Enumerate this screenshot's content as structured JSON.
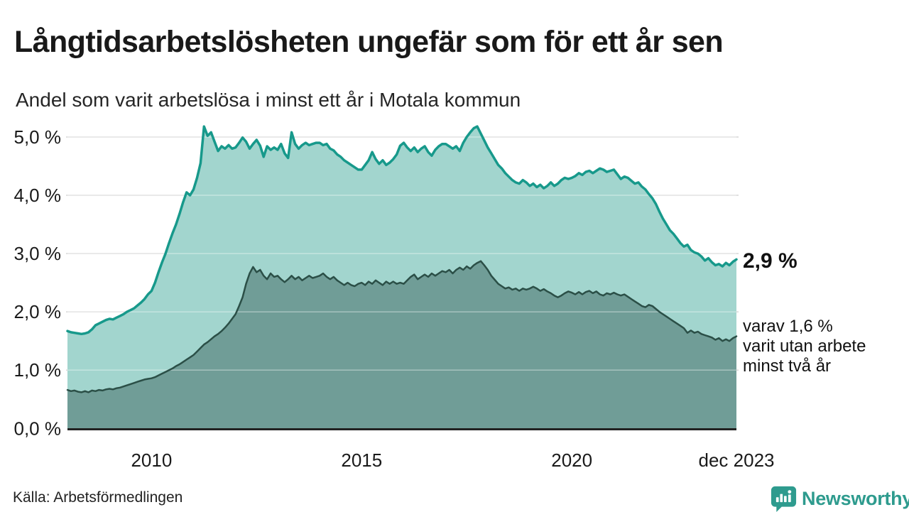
{
  "header": {
    "title": "Långtidsarbetslösheten ungefär som för ett år sen",
    "subtitle": "Andel som varit arbetslösa i minst ett år i Motala kommun"
  },
  "annotations": {
    "latest_total": "2,9 %",
    "secondary_line1": "varav 1,6 %",
    "secondary_line2": "varit utan arbete",
    "secondary_line3": "minst två år"
  },
  "footer": {
    "source": "Källa: Arbetsförmedlingen",
    "brand": "Newsworthy"
  },
  "colors": {
    "total_line": "#17998b",
    "total_fill": "#a2d5ce",
    "two_year_line": "#2b4f47",
    "two_year_fill": "#709d97",
    "gridline": "#d9d9d9",
    "axis_line": "#222222",
    "text": "#1a1a1a",
    "brand_teal": "#2E9B8E"
  },
  "chart_data": {
    "type": "area",
    "title": "Långtidsarbetslösheten ungefär som för ett år sen",
    "subtitle": "Andel som varit arbetslösa i minst ett år i Motala kommun",
    "unit": "%",
    "x_range": {
      "start_year": 2008,
      "end_label": "dec 2023",
      "resolution": "monthly"
    },
    "ylim": [
      0,
      5.3
    ],
    "grid": true,
    "legend": "none (direct labels at line ends)",
    "y_ticks": [
      {
        "label": "0,0 %",
        "value": 0
      },
      {
        "label": "1,0 %",
        "value": 1
      },
      {
        "label": "2,0 %",
        "value": 2
      },
      {
        "label": "3,0 %",
        "value": 3
      },
      {
        "label": "4,0 %",
        "value": 4
      },
      {
        "label": "5,0 %",
        "value": 5
      }
    ],
    "x_ticks": [
      {
        "label": "2010",
        "month_index": 24
      },
      {
        "label": "2015",
        "month_index": 84
      },
      {
        "label": "2020",
        "month_index": 144
      },
      {
        "label": "dec 2023",
        "month_index": 191
      }
    ],
    "series": [
      {
        "name": "Andel arbetslösa minst ett år",
        "end_label": "2,9 %",
        "line_color": "#17998b",
        "fill_color": "#a2d5ce",
        "line_width": 3.5,
        "values": [
          1.67,
          1.65,
          1.64,
          1.63,
          1.62,
          1.63,
          1.65,
          1.7,
          1.77,
          1.8,
          1.83,
          1.86,
          1.88,
          1.87,
          1.9,
          1.93,
          1.96,
          2.0,
          2.03,
          2.06,
          2.11,
          2.16,
          2.22,
          2.3,
          2.36,
          2.5,
          2.68,
          2.85,
          3.0,
          3.18,
          3.35,
          3.5,
          3.68,
          3.88,
          4.05,
          4.0,
          4.1,
          4.3,
          4.55,
          5.18,
          5.02,
          5.08,
          4.92,
          4.76,
          4.84,
          4.8,
          4.86,
          4.8,
          4.82,
          4.9,
          4.99,
          4.92,
          4.8,
          4.88,
          4.95,
          4.85,
          4.66,
          4.84,
          4.78,
          4.82,
          4.78,
          4.88,
          4.72,
          4.64,
          5.08,
          4.88,
          4.8,
          4.86,
          4.9,
          4.86,
          4.88,
          4.9,
          4.9,
          4.86,
          4.88,
          4.8,
          4.77,
          4.7,
          4.66,
          4.6,
          4.56,
          4.52,
          4.48,
          4.44,
          4.44,
          4.52,
          4.6,
          4.74,
          4.62,
          4.54,
          4.6,
          4.52,
          4.56,
          4.62,
          4.7,
          4.85,
          4.9,
          4.82,
          4.76,
          4.82,
          4.74,
          4.8,
          4.84,
          4.74,
          4.68,
          4.78,
          4.84,
          4.88,
          4.88,
          4.84,
          4.8,
          4.84,
          4.76,
          4.9,
          5.0,
          5.08,
          5.15,
          5.18,
          5.06,
          4.94,
          4.82,
          4.72,
          4.62,
          4.52,
          4.46,
          4.38,
          4.32,
          4.26,
          4.22,
          4.2,
          4.26,
          4.22,
          4.16,
          4.2,
          4.14,
          4.18,
          4.12,
          4.16,
          4.22,
          4.16,
          4.2,
          4.26,
          4.3,
          4.28,
          4.3,
          4.33,
          4.38,
          4.35,
          4.4,
          4.42,
          4.38,
          4.42,
          4.46,
          4.44,
          4.4,
          4.42,
          4.44,
          4.36,
          4.28,
          4.32,
          4.3,
          4.25,
          4.2,
          4.22,
          4.15,
          4.1,
          4.02,
          3.95,
          3.85,
          3.72,
          3.6,
          3.5,
          3.4,
          3.34,
          3.26,
          3.18,
          3.12,
          3.15,
          3.06,
          3.02,
          3.0,
          2.95,
          2.88,
          2.92,
          2.85,
          2.8,
          2.82,
          2.78,
          2.84,
          2.8,
          2.86,
          2.9
        ]
      },
      {
        "name": "varav arbetslösa minst två år",
        "end_label": "varav 1,6 % varit utan arbete minst två år",
        "line_color": "#2b4f47",
        "fill_color": "#709d97",
        "line_width": 2.5,
        "values": [
          0.66,
          0.64,
          0.65,
          0.63,
          0.62,
          0.64,
          0.62,
          0.65,
          0.64,
          0.66,
          0.65,
          0.67,
          0.68,
          0.67,
          0.69,
          0.7,
          0.72,
          0.74,
          0.76,
          0.78,
          0.8,
          0.82,
          0.84,
          0.85,
          0.86,
          0.88,
          0.91,
          0.94,
          0.97,
          1.0,
          1.03,
          1.07,
          1.1,
          1.14,
          1.18,
          1.22,
          1.26,
          1.32,
          1.38,
          1.44,
          1.48,
          1.53,
          1.58,
          1.62,
          1.67,
          1.73,
          1.8,
          1.88,
          1.96,
          2.1,
          2.25,
          2.48,
          2.66,
          2.77,
          2.68,
          2.72,
          2.62,
          2.56,
          2.66,
          2.6,
          2.62,
          2.56,
          2.51,
          2.56,
          2.62,
          2.56,
          2.6,
          2.54,
          2.58,
          2.62,
          2.58,
          2.6,
          2.62,
          2.66,
          2.6,
          2.56,
          2.6,
          2.54,
          2.5,
          2.46,
          2.5,
          2.46,
          2.44,
          2.48,
          2.5,
          2.46,
          2.52,
          2.48,
          2.54,
          2.5,
          2.46,
          2.52,
          2.48,
          2.52,
          2.48,
          2.5,
          2.48,
          2.54,
          2.6,
          2.64,
          2.56,
          2.6,
          2.64,
          2.6,
          2.66,
          2.62,
          2.66,
          2.7,
          2.68,
          2.72,
          2.66,
          2.72,
          2.76,
          2.72,
          2.78,
          2.74,
          2.8,
          2.84,
          2.87,
          2.8,
          2.72,
          2.62,
          2.55,
          2.48,
          2.44,
          2.4,
          2.42,
          2.38,
          2.4,
          2.36,
          2.4,
          2.38,
          2.4,
          2.43,
          2.4,
          2.36,
          2.39,
          2.35,
          2.32,
          2.28,
          2.25,
          2.28,
          2.32,
          2.35,
          2.33,
          2.3,
          2.34,
          2.3,
          2.34,
          2.36,
          2.32,
          2.35,
          2.3,
          2.28,
          2.32,
          2.3,
          2.33,
          2.3,
          2.28,
          2.3,
          2.26,
          2.22,
          2.18,
          2.14,
          2.1,
          2.08,
          2.12,
          2.1,
          2.05,
          2.0,
          1.96,
          1.92,
          1.88,
          1.84,
          1.8,
          1.76,
          1.72,
          1.64,
          1.68,
          1.64,
          1.66,
          1.62,
          1.6,
          1.58,
          1.56,
          1.52,
          1.55,
          1.5,
          1.53,
          1.5,
          1.55,
          1.58
        ]
      }
    ]
  }
}
